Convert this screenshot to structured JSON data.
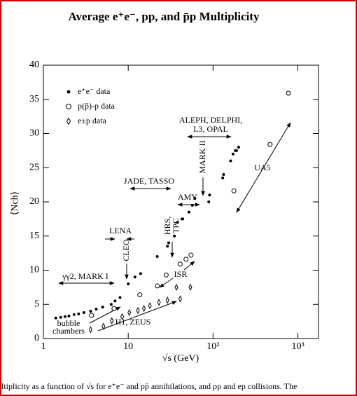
{
  "chart_data": {
    "type": "scatter",
    "title": "Average e⁺e⁻,  pp, and p̄p Multiplicity",
    "x_label": "√s  (GeV)",
    "y_label": "⟨Nch⟩",
    "xscale": "log",
    "xlim": [
      1,
      1750
    ],
    "ylim": [
      0,
      40
    ],
    "xticks": [
      1,
      10,
      {
        "value": 100,
        "label": "10²"
      },
      {
        "value": 1000,
        "label": "10³"
      }
    ],
    "yticks": [
      0,
      5,
      10,
      15,
      20,
      25,
      30,
      35,
      40
    ],
    "series": [
      {
        "name": "e⁺e⁻  data",
        "color": "#000000",
        "marker": "filled-circle",
        "x": [
          1.4,
          1.6,
          1.8,
          2.0,
          2.3,
          2.6,
          3.0,
          3.6,
          4.2,
          5.0,
          6.3,
          7.0,
          8.0,
          10,
          12,
          14,
          22,
          29,
          30,
          35,
          38,
          43,
          44,
          52,
          57,
          61,
          89,
          91,
          130,
          133,
          161,
          172,
          183,
          189,
          200
        ],
        "values": [
          3.0,
          3.1,
          3.2,
          3.3,
          3.5,
          3.6,
          3.8,
          4.0,
          4.3,
          4.6,
          5.0,
          5.5,
          6.0,
          8.0,
          9.0,
          9.5,
          12.0,
          13.5,
          14.0,
          15.0,
          17.0,
          17.5,
          17.5,
          18.5,
          19.5,
          20.5,
          20.0,
          21.0,
          23.5,
          24.0,
          26.0,
          27.0,
          27.5,
          27.5,
          28.0
        ]
      },
      {
        "name": "p(p̄)-p  data",
        "color": "#000000",
        "marker": "open-circle",
        "x": [
          3.7,
          6.8,
          13.7,
          22,
          28,
          41,
          48,
          55,
          176,
          470,
          774
        ],
        "values": [
          3.4,
          4.4,
          6.4,
          7.7,
          9.3,
          10.9,
          11.6,
          12.2,
          21.6,
          28.4,
          35.9
        ]
      },
      {
        "name": "e±p data",
        "color": "#000000",
        "marker": "open-diamond",
        "x": [
          3.6,
          5.1,
          6.4,
          8.5,
          10.3,
          13,
          15.3,
          18,
          23,
          29,
          37,
          41,
          54
        ],
        "values": [
          1.3,
          1.8,
          2.6,
          3.2,
          3.8,
          4.1,
          4.4,
          4.8,
          5.3,
          5.6,
          7.5,
          5.8,
          7.5
        ]
      }
    ],
    "annotations": [
      "γγ2, MARK I",
      "LENA",
      "CLEO",
      "JADE, TASSO",
      "HRS,",
      "TPC",
      "AMY",
      "MARK II",
      "ALEPH, DELPHI,",
      "L3, OPAL",
      "UA5",
      "ISR",
      "bubble",
      "chambers",
      "H1, ZEUS"
    ],
    "caption": "ltiplicity as a function of √s for e⁺e⁻ and pp̄ annihilations, and pp and ep collisions.  The"
  }
}
